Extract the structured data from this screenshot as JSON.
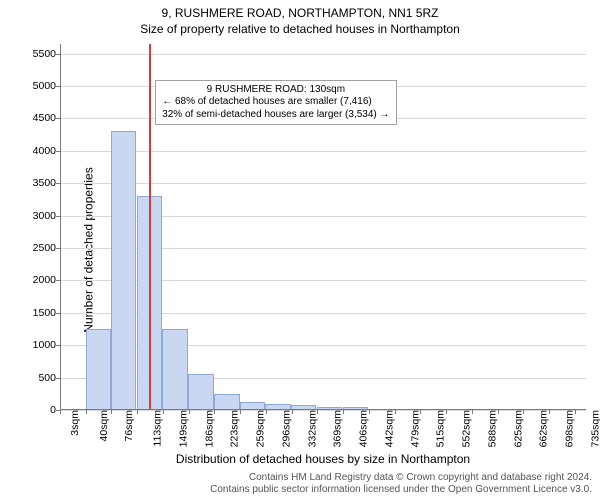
{
  "chart": {
    "type": "histogram",
    "title": "9, RUSHMERE ROAD, NORTHAMPTON, NN1 5RZ",
    "subtitle": "Size of property relative to detached houses in Northampton",
    "xlabel": "Distribution of detached houses by size in Northampton",
    "ylabel": "Number of detached properties",
    "credits_line1": "Contains HM Land Registry data © Crown copyright and database right 2024.",
    "credits_line2": "Contains public sector information licensed under the Open Government Licence v3.0.",
    "background_color": "#ffffff",
    "grid_color": "#d8d8d8",
    "axis_color": "#7a7a7a",
    "bar_fill": "#c9d7f0",
    "bar_stroke": "#90a9d6",
    "ref_line_color": "#d93a3a",
    "title_fontsize": 12,
    "subtitle_fontsize": 12,
    "label_fontsize": 12,
    "tick_fontsize": 10.5,
    "credits_fontsize": 10,
    "annotation_fontsize": 10,
    "xlim": [
      3,
      753
    ],
    "ylim": [
      0,
      5650
    ],
    "xtick_step_sqm": 36.7,
    "xticks": [
      "3sqm",
      "40sqm",
      "76sqm",
      "113sqm",
      "149sqm",
      "186sqm",
      "223sqm",
      "259sqm",
      "296sqm",
      "332sqm",
      "369sqm",
      "406sqm",
      "442sqm",
      "479sqm",
      "515sqm",
      "552sqm",
      "588sqm",
      "625sqm",
      "662sqm",
      "698sqm",
      "735sqm"
    ],
    "yticks": [
      0,
      500,
      1000,
      1500,
      2000,
      2500,
      3000,
      3500,
      4000,
      4500,
      5000,
      5500
    ],
    "bars_x_sqm": [
      40,
      76,
      113,
      149,
      186,
      223,
      259,
      296,
      332,
      369,
      406
    ],
    "bars_width_sqm": 36.7,
    "bars_values": [
      1250,
      4300,
      3300,
      1250,
      550,
      250,
      130,
      100,
      70,
      50,
      40
    ],
    "reference_value_sqm": 130,
    "annotation": {
      "line1": "9 RUSHMERE ROAD: 130sqm",
      "line2": "← 68% of detached houses are smaller (7,416)",
      "line3": "32% of semi-detached houses are larger (3,534) →",
      "x_sqm": 133,
      "y_value": 5100,
      "border_color": "#a0a0a0",
      "background_color": "#ffffff"
    }
  }
}
